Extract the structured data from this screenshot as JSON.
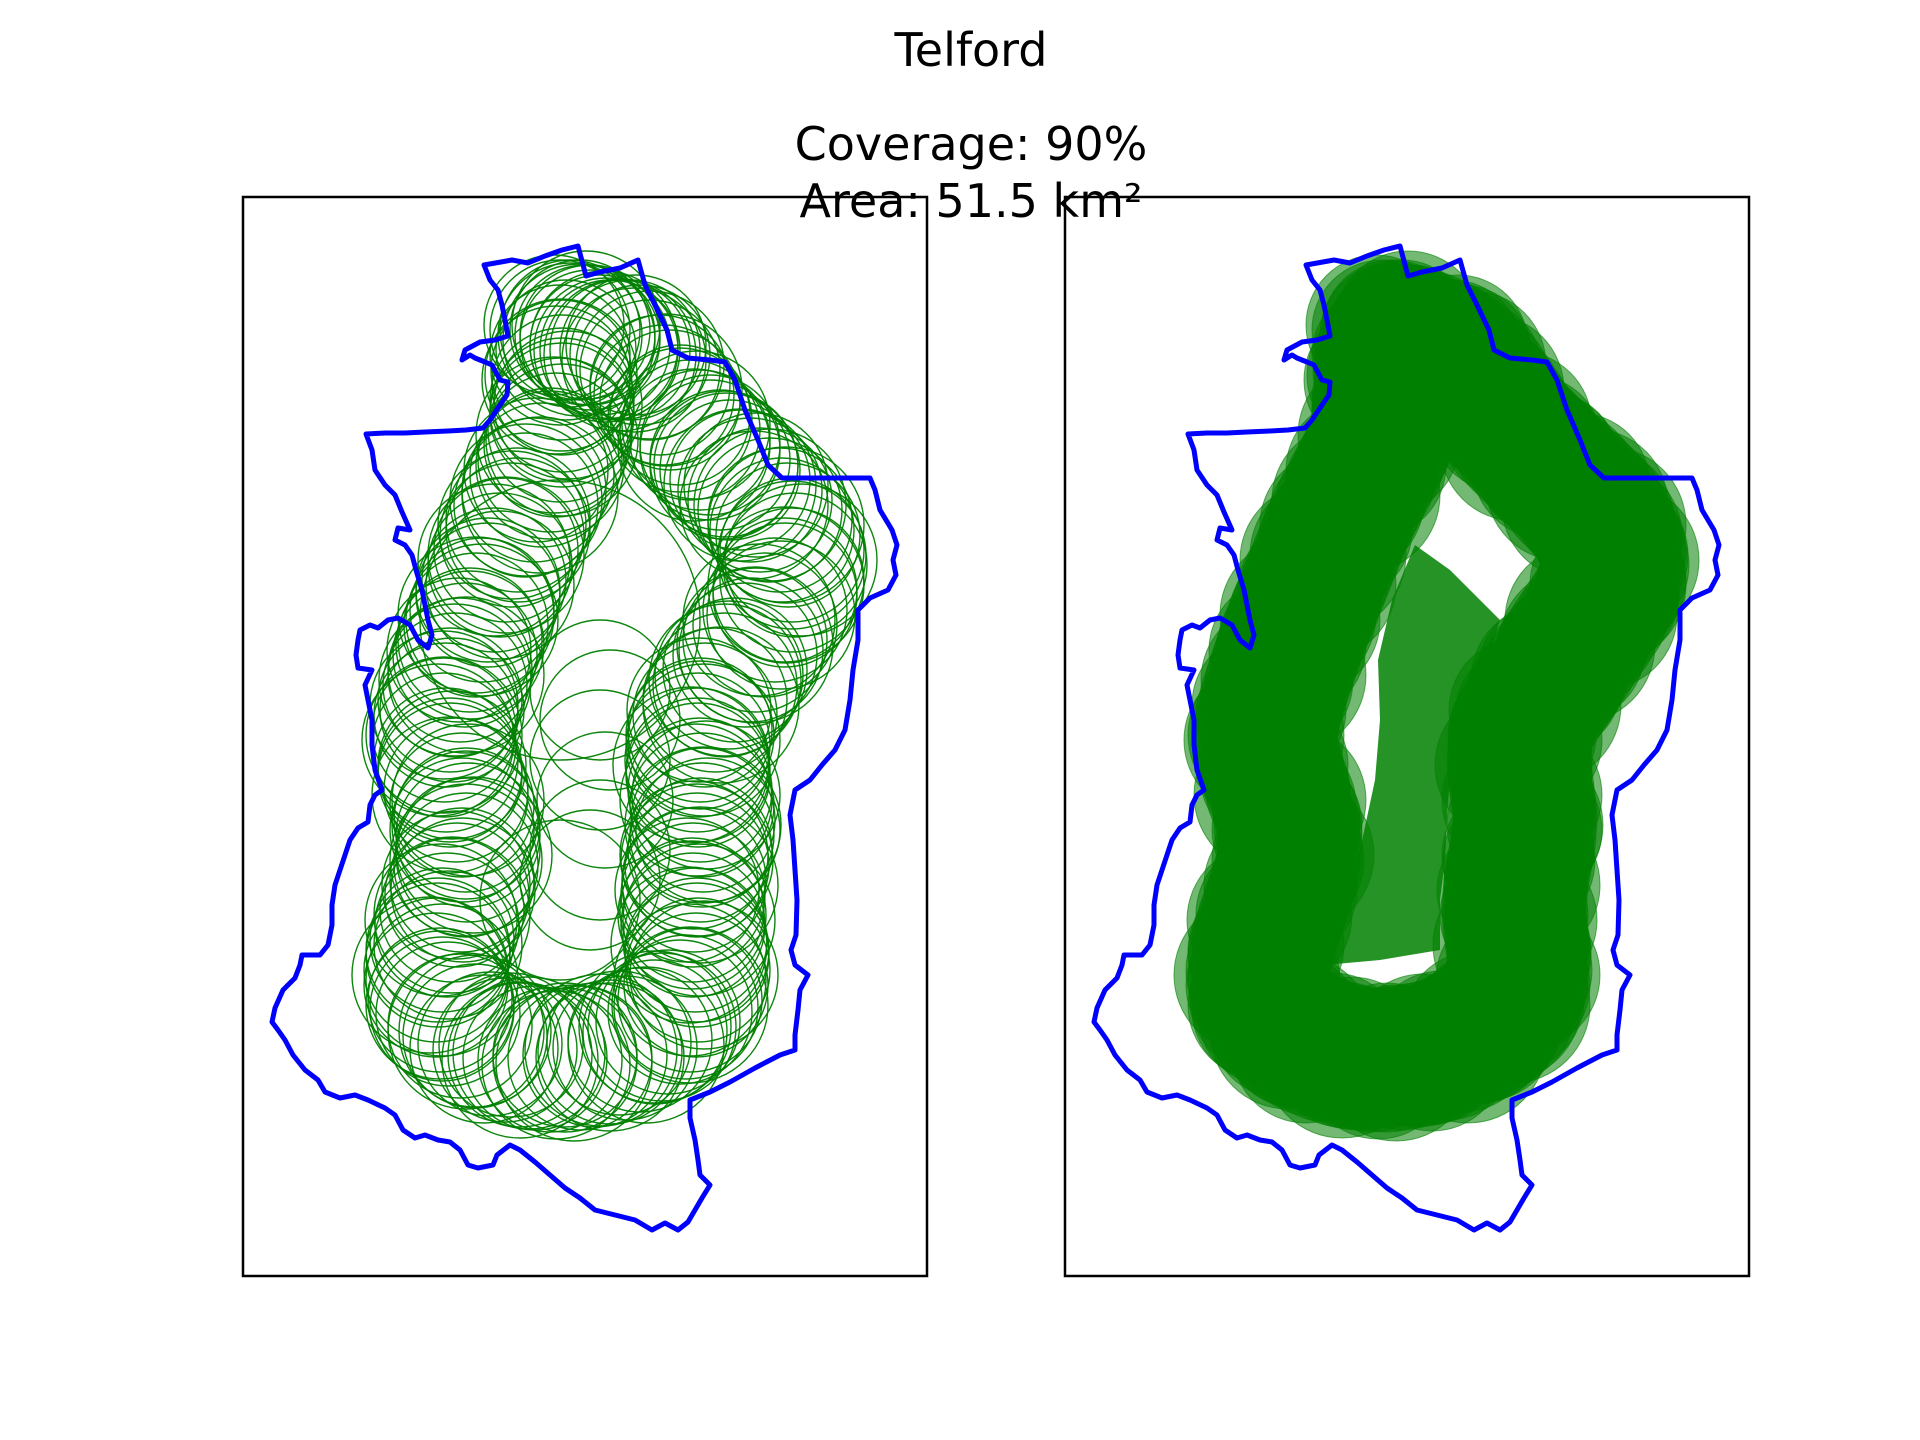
{
  "figure": {
    "title": "Telford",
    "subtitle_line1": "Coverage: 90%",
    "subtitle_line2": "Area: 51.5 km²"
  },
  "colors": {
    "boundary": "#0000ff",
    "coverage": "#008000",
    "frame": "#000000",
    "background": "#ffffff"
  },
  "panels": [
    {
      "name": "outline-view",
      "style": "circle-outlines"
    },
    {
      "name": "filled-view",
      "style": "filled-circles"
    }
  ]
}
